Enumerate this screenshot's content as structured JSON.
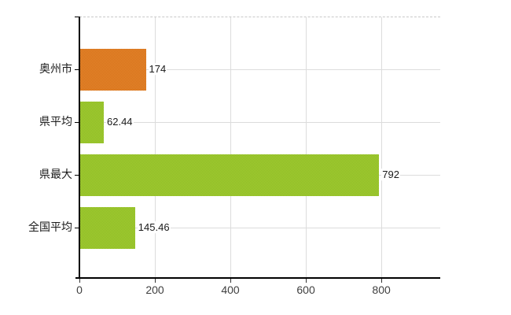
{
  "chart_data": {
    "type": "bar",
    "orientation": "horizontal",
    "categories": [
      "奥州市",
      "県平均",
      "県最大",
      "全国平均"
    ],
    "values": [
      174,
      62.44,
      792,
      145.46
    ],
    "bars": [
      {
        "label": "奥州市",
        "value": 174,
        "value_label": "174",
        "color": "orange"
      },
      {
        "label": "県平均",
        "value": 62.44,
        "value_label": "62.44",
        "color": "green"
      },
      {
        "label": "県最大",
        "value": 792,
        "value_label": "792",
        "color": "green"
      },
      {
        "label": "全国平均",
        "value": 145.46,
        "value_label": "145.46",
        "color": "green"
      }
    ],
    "x_ticks": [
      0,
      200,
      400,
      600,
      800
    ],
    "x_tick_labels": [
      "0",
      "200",
      "400",
      "600",
      "800"
    ],
    "xlim": [
      0,
      956
    ],
    "grid": true,
    "legend": null
  },
  "colors": {
    "background": "#ffffff",
    "bar_orange": "#df7d26",
    "bar_green": "#9cc42c",
    "gridline": "#dcdcdc",
    "plot_top_border": "#c9c9c9",
    "axis": "#000000",
    "tick_label": "#404040",
    "value_label": "#1a1a1a"
  }
}
